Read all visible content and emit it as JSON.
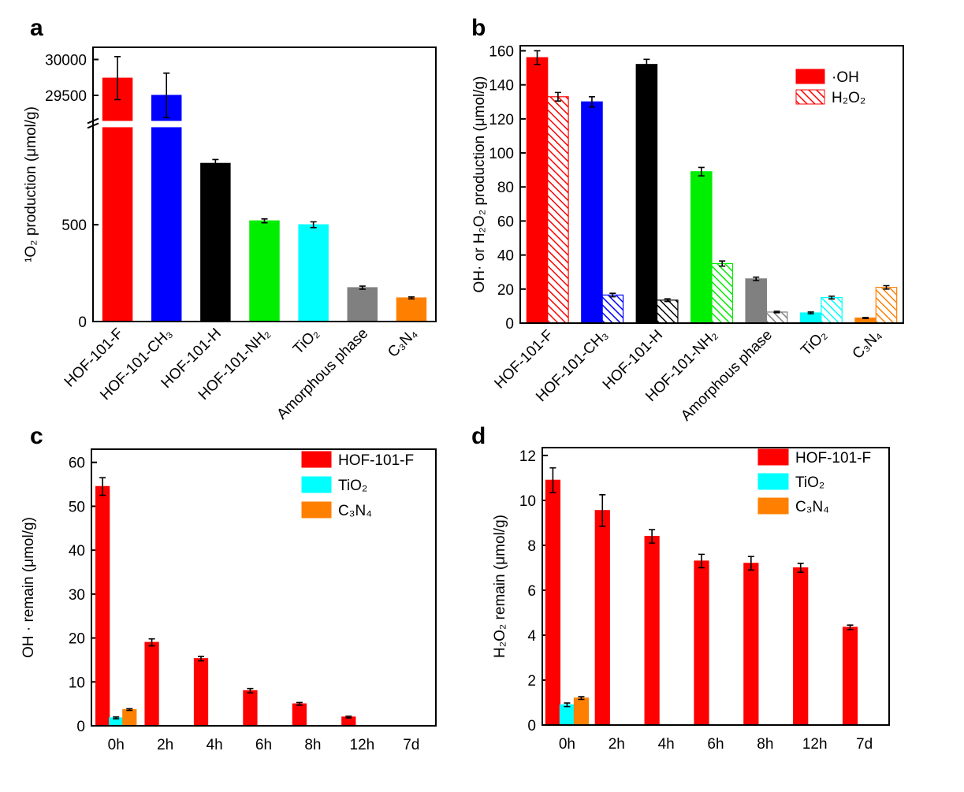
{
  "chart_data": [
    {
      "type": "bar",
      "label": "a",
      "ylabel": "¹O₂ production (μmol/g)",
      "categories": [
        "HOF-101-F",
        "HOF-101-CH₃",
        "HOF-101-H",
        "HOF-101-NH₂",
        "TiO₂",
        "Amorphous phase",
        "C₃N₄"
      ],
      "values": [
        29740,
        29500,
        817,
        520,
        500,
        175,
        122
      ],
      "errors": [
        300,
        310,
        20,
        10,
        15,
        8,
        5
      ],
      "colors": [
        "#ff0000",
        "#0000ff",
        "#000000",
        "#00ee00",
        "#00ffff",
        "#808080",
        "#ff8000"
      ],
      "ylim": [
        0,
        30170
      ],
      "y_break": [
        1020,
        29100
      ],
      "yticks": [
        0,
        500,
        29500,
        30000
      ]
    },
    {
      "type": "bar",
      "label": "b",
      "ylabel": "OH· or H₂O₂ production (μmol/g)",
      "categories": [
        "HOF-101-F",
        "HOF-101-CH₃",
        "HOF-101-H",
        "HOF-101-NH₂",
        "Amorphous phase",
        "TiO₂",
        "C₃N₄"
      ],
      "colors": [
        "#ff0000",
        "#0000ff",
        "#000000",
        "#00ee00",
        "#808080",
        "#00ffff",
        "#ff8000"
      ],
      "series": [
        {
          "name": "·OH",
          "pattern": "solid",
          "values": [
            156,
            130,
            152,
            89,
            26,
            6,
            3
          ],
          "errors": [
            4,
            3,
            3,
            2.5,
            1,
            0.5,
            0.3
          ]
        },
        {
          "name": "H₂O₂",
          "pattern": "hatch",
          "values": [
            133,
            16.5,
            13.5,
            35,
            6.5,
            15,
            21
          ],
          "errors": [
            2.5,
            1,
            0.8,
            1.5,
            0.4,
            0.8,
            1
          ]
        }
      ],
      "ylim": [
        0,
        163
      ],
      "yticks": [
        0,
        20,
        40,
        60,
        80,
        100,
        120,
        140,
        160
      ],
      "legend": "upper right"
    },
    {
      "type": "bar",
      "label": "c",
      "ylabel": "OH · remain (μmol/g)",
      "categories": [
        "0h",
        "2h",
        "4h",
        "6h",
        "8h",
        "12h",
        "7d"
      ],
      "series": [
        {
          "name": "HOF-101-F",
          "color": "#ff0000",
          "values": [
            54.5,
            19,
            15.3,
            8,
            5,
            2,
            null
          ],
          "errors": [
            2,
            0.8,
            0.5,
            0.5,
            0.3,
            0.2,
            null
          ]
        },
        {
          "name": "TiO₂",
          "color": "#00ffff",
          "values": [
            1.8,
            null,
            null,
            null,
            null,
            null,
            null
          ],
          "errors": [
            0.2,
            null,
            null,
            null,
            null,
            null,
            null
          ]
        },
        {
          "name": "C₃N₄",
          "color": "#ff8000",
          "values": [
            3.7,
            null,
            null,
            null,
            null,
            null,
            null
          ],
          "errors": [
            0.2,
            null,
            null,
            null,
            null,
            null,
            null
          ]
        }
      ],
      "ylim": [
        0,
        63
      ],
      "yticks": [
        0,
        10,
        20,
        30,
        40,
        50,
        60
      ],
      "legend": "upper right"
    },
    {
      "type": "bar",
      "label": "d",
      "ylabel": "H₂O₂ remain (μmol/g)",
      "categories": [
        "0h",
        "2h",
        "4h",
        "6h",
        "8h",
        "12h",
        "7d"
      ],
      "series": [
        {
          "name": "HOF-101-F",
          "color": "#ff0000",
          "values": [
            10.9,
            9.55,
            8.4,
            7.3,
            7.2,
            7.0,
            4.35
          ],
          "errors": [
            0.55,
            0.7,
            0.3,
            0.3,
            0.3,
            0.2,
            0.1
          ]
        },
        {
          "name": "TiO₂",
          "color": "#00ffff",
          "values": [
            0.9,
            null,
            null,
            null,
            null,
            null,
            null
          ],
          "errors": [
            0.08,
            null,
            null,
            null,
            null,
            null,
            null
          ]
        },
        {
          "name": "C₃N₄",
          "color": "#ff8000",
          "values": [
            1.2,
            null,
            null,
            null,
            null,
            null,
            null
          ],
          "errors": [
            0.06,
            null,
            null,
            null,
            null,
            null,
            null
          ]
        }
      ],
      "ylim": [
        0,
        12.35
      ],
      "yticks": [
        0,
        2,
        4,
        6,
        8,
        10,
        12
      ],
      "legend": "upper right"
    }
  ]
}
